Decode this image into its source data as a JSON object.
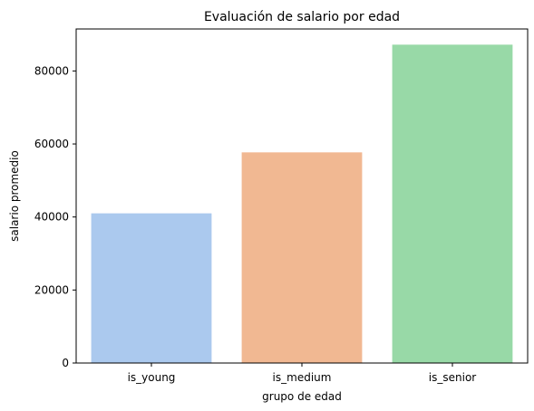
{
  "chart_data": {
    "type": "bar",
    "title": "Evaluación de salario por edad",
    "xlabel": "grupo de edad",
    "ylabel": "salario promedio",
    "categories": [
      "is_young",
      "is_medium",
      "is_senior"
    ],
    "values": [
      41000,
      57700,
      87200
    ],
    "colors": [
      "#abc9ee",
      "#f1b892",
      "#98d9a7"
    ],
    "ylim": [
      0,
      91500
    ],
    "yticks": [
      0,
      20000,
      40000,
      60000,
      80000
    ],
    "ytick_labels": [
      "0",
      "20000",
      "40000",
      "60000",
      "80000"
    ],
    "grid": false,
    "legend": "none"
  }
}
